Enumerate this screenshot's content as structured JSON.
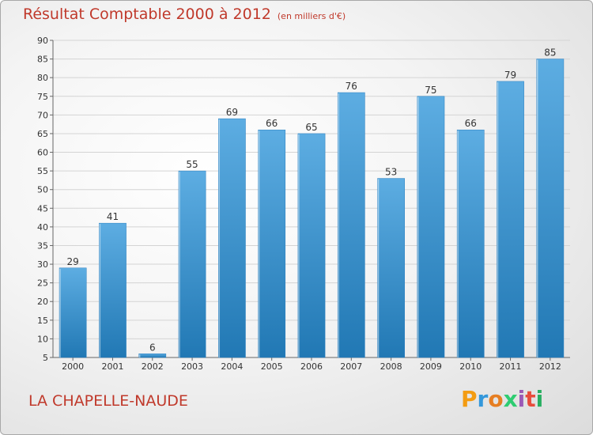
{
  "header": {
    "title": "Résultat Comptable 2000 à 2012",
    "subtitle": "(en milliers d'€)"
  },
  "footer": {
    "place": "LA CHAPELLE-NAUDE",
    "logo_letters": [
      "P",
      "r",
      "o",
      "x",
      "i",
      "t",
      "i"
    ],
    "logo_colors": [
      "#f39c12",
      "#3498db",
      "#e67e22",
      "#2ecc71",
      "#9b59b6",
      "#e74c3c",
      "#27ae60"
    ]
  },
  "colors": {
    "bar_light": "#5dade2",
    "bar_dark": "#2178b4",
    "accent": "#c0392b"
  },
  "chart_data": {
    "type": "bar",
    "title": "Résultat Comptable 2000 à 2012",
    "subtitle": "(en milliers d'€)",
    "xlabel": "",
    "ylabel": "",
    "categories": [
      "2000",
      "2001",
      "2002",
      "2003",
      "2004",
      "2005",
      "2006",
      "2007",
      "2008",
      "2009",
      "2010",
      "2011",
      "2012"
    ],
    "values": [
      29,
      41,
      6,
      55,
      69,
      66,
      65,
      76,
      53,
      75,
      66,
      79,
      85
    ],
    "ylim": [
      5,
      90
    ],
    "yticks": [
      5,
      10,
      15,
      20,
      25,
      30,
      35,
      40,
      45,
      50,
      55,
      60,
      65,
      70,
      75,
      80,
      85,
      90
    ],
    "grid": true,
    "data_labels": true
  }
}
